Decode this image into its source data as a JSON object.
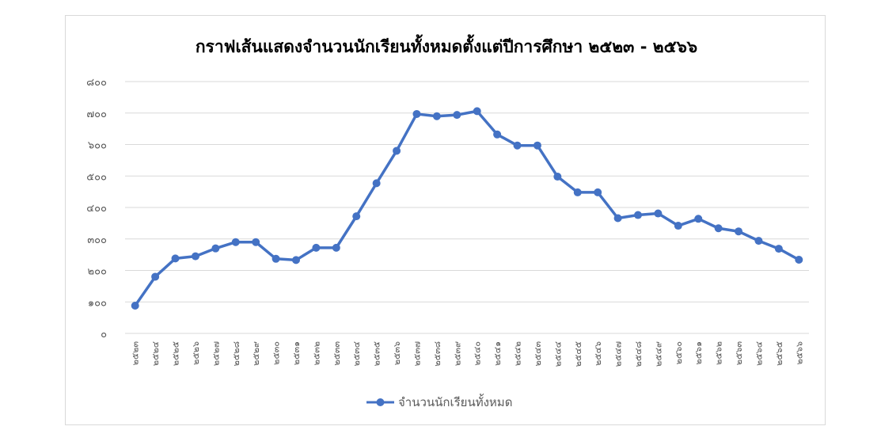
{
  "chart_data": {
    "type": "line",
    "title": "กราฟเส้นแสดงจำนวนนักเรียนทั้งหมดตั้งแต่ปีการศึกษา ๒๕๒๓ - ๒๕๖๖",
    "xlabel": "",
    "ylabel": "",
    "ylim": [
      0,
      800
    ],
    "yticks": [
      0,
      100,
      200,
      300,
      400,
      500,
      600,
      700,
      800
    ],
    "ytick_labels": [
      "๐",
      "๑๐๐",
      "๒๐๐",
      "๓๐๐",
      "๔๐๐",
      "๕๐๐",
      "๖๐๐",
      "๗๐๐",
      "๘๐๐"
    ],
    "grid": true,
    "legend_position": "bottom",
    "color": "#4472C4",
    "categories": [
      "๒๕๒๓",
      "๒๕๒๔",
      "๒๕๒๕",
      "๒๕๒๖",
      "๒๕๒๗",
      "๒๕๒๘",
      "๒๕๒๙",
      "๒๕๓๐",
      "๒๕๓๑",
      "๒๕๓๒",
      "๒๕๓๓",
      "๒๕๓๔",
      "๒๕๓๕",
      "๒๕๓๖",
      "๒๕๓๗",
      "๒๕๓๘",
      "๒๕๓๙",
      "๒๕๔๐",
      "๒๕๔๑",
      "๒๕๔๒",
      "๒๕๔๓",
      "๒๕๔๔",
      "๒๕๔๕",
      "๒๕๔๖",
      "๒๕๔๗",
      "๒๕๔๘",
      "๒๕๔๙",
      "๒๕๖๐",
      "๒๕๖๑",
      "๒๕๖๒",
      "๒๕๖๓",
      "๒๕๖๔",
      "๒๕๖๕",
      "๒๕๖๖"
    ],
    "series": [
      {
        "name": "จำนวนนักเรียนทั้งหมด",
        "values": [
          88,
          180,
          238,
          245,
          270,
          290,
          290,
          237,
          233,
          272,
          272,
          372,
          477,
          580,
          697,
          690,
          694,
          706,
          632,
          597,
          597,
          498,
          448,
          448,
          366,
          376,
          381,
          342,
          364,
          334,
          324,
          294,
          269,
          234
        ]
      }
    ]
  }
}
